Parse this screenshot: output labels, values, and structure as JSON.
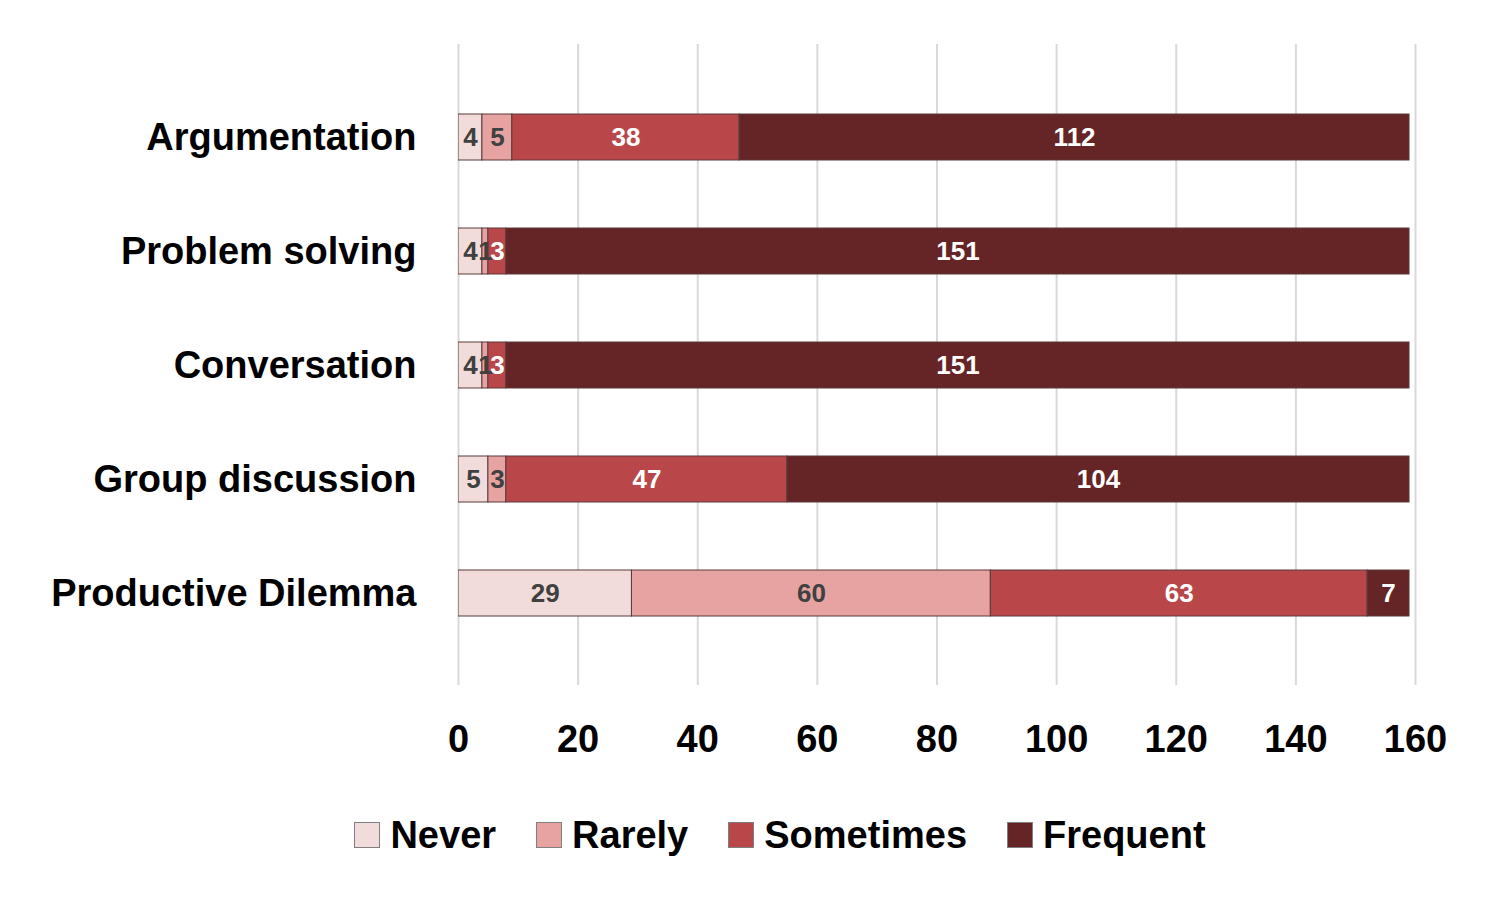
{
  "chart_data": {
    "type": "bar",
    "orientation": "horizontal",
    "stacked": true,
    "data_labels": true,
    "grid": true,
    "legend": "bottom",
    "categories": [
      "Argumentation",
      "Problem solving",
      "Conversation",
      "Group discussion",
      "Productive Dilemma"
    ],
    "series": [
      {
        "name": "Never",
        "color": "#f2dcdb",
        "values": [
          4,
          4,
          4,
          5,
          29
        ]
      },
      {
        "name": "Rarely",
        "color": "#e6a3a2",
        "values": [
          5,
          1,
          1,
          3,
          60
        ]
      },
      {
        "name": "Sometimes",
        "color": "#b9474a",
        "values": [
          38,
          3,
          3,
          47,
          63
        ]
      },
      {
        "name": "Frequent",
        "color": "#652426",
        "values": [
          112,
          151,
          151,
          104,
          7
        ]
      }
    ],
    "xlim": [
      0,
      160
    ],
    "xticks": [
      0,
      20,
      40,
      60,
      80,
      100,
      120,
      140,
      160
    ]
  }
}
